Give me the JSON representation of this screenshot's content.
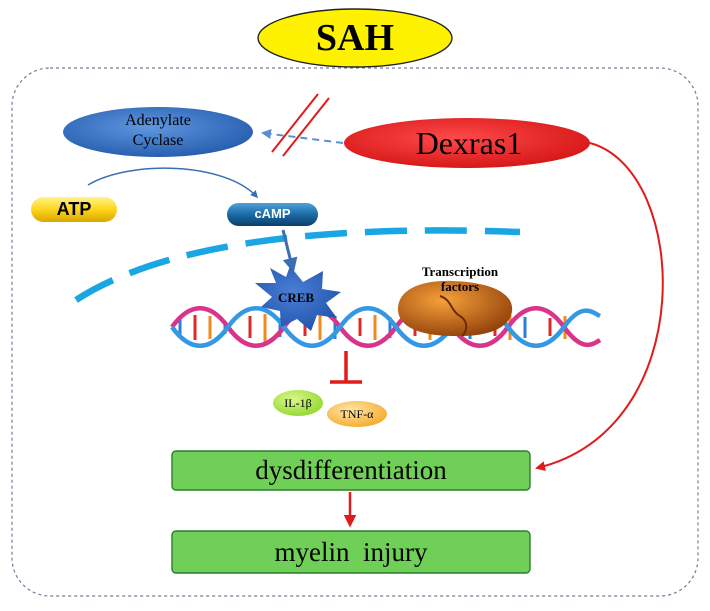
{
  "title": "SAH",
  "nodes": {
    "adenylate_cyclase": [
      "Adenylate",
      "Cyclase"
    ],
    "dexras1": "Dexras1",
    "atp": "ATP",
    "camp": "cAMP",
    "creb": "CREB",
    "transcription_factors": [
      "Transcription",
      "factors"
    ],
    "il1b": "IL-1β",
    "tnfa": "TNF-α",
    "dysdifferentiation": "dysdifferentiation",
    "myelin_injury": "myelin  injury"
  },
  "colors": {
    "title_fill": "#fff200",
    "dexras_fill": "#ee1c1c",
    "adenylate_fill": "#2f6fc4",
    "box_fill": "#6fcf57",
    "box_border": "#2e7d32",
    "membrane": "#1aa6e2",
    "red_line": "#e01b1b",
    "dashed_arrow": "#5b8fd0",
    "blue_arrow": "#3a6fb5"
  }
}
